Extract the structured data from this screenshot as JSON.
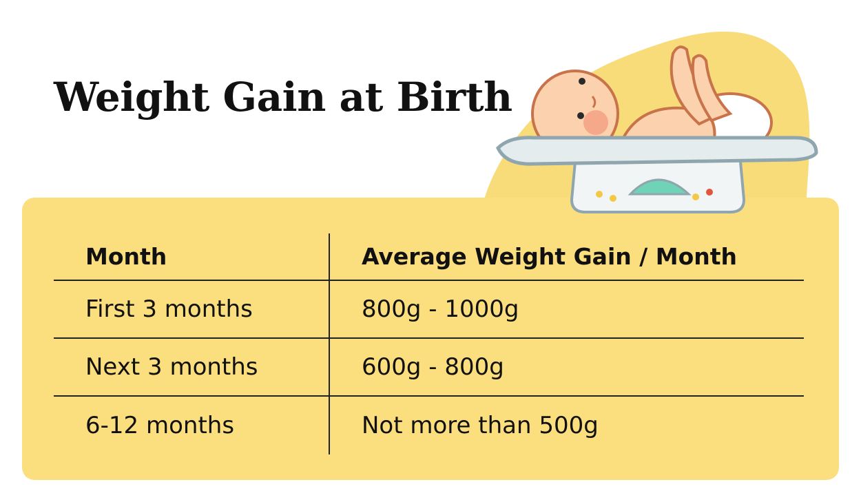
{
  "title": "Weight Gain at Birth",
  "colors": {
    "card": "#FBDE7E",
    "blob": "#F8DC7A",
    "text": "#111111"
  },
  "illustration": "baby-on-scale",
  "table": {
    "headers": [
      "Month",
      "Average Weight Gain / Month"
    ],
    "rows": [
      [
        "First 3 months",
        "800g - 1000g"
      ],
      [
        "Next 3 months",
        "600g - 800g"
      ],
      [
        "6-12 months",
        "Not more than 500g"
      ]
    ]
  }
}
